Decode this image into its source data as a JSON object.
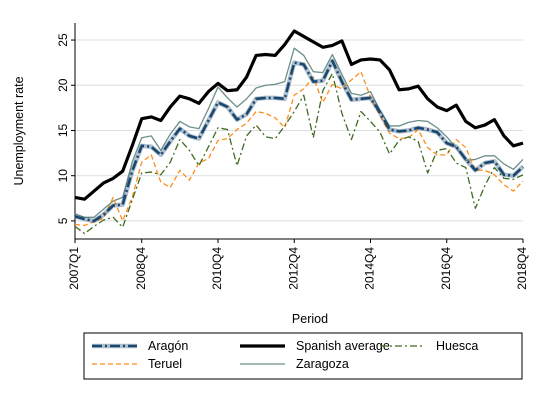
{
  "chart_data": {
    "type": "line",
    "xlabel": "Period",
    "ylabel": "Unemployment rate",
    "ylim": [
      3,
      26
    ],
    "yticks": [
      5,
      10,
      15,
      20,
      25
    ],
    "x_tick_labels": [
      "2007Q1",
      "2008Q4",
      "2010Q4",
      "2012Q4",
      "2014Q4",
      "2016Q4",
      "2018Q4"
    ],
    "x_tick_index": [
      0,
      7,
      15,
      23,
      31,
      39,
      47
    ],
    "grid": "horizontal",
    "legend_position": "bottom",
    "x": [
      "2007Q1",
      "2007Q2",
      "2007Q3",
      "2007Q4",
      "2008Q1",
      "2008Q2",
      "2008Q3",
      "2008Q4",
      "2009Q1",
      "2009Q2",
      "2009Q3",
      "2009Q4",
      "2010Q1",
      "2010Q2",
      "2010Q3",
      "2010Q4",
      "2011Q1",
      "2011Q2",
      "2011Q3",
      "2011Q4",
      "2012Q1",
      "2012Q2",
      "2012Q3",
      "2012Q4",
      "2013Q1",
      "2013Q2",
      "2013Q3",
      "2013Q4",
      "2014Q1",
      "2014Q2",
      "2014Q3",
      "2014Q4",
      "2015Q1",
      "2015Q2",
      "2015Q3",
      "2015Q4",
      "2016Q1",
      "2016Q2",
      "2016Q3",
      "2016Q4",
      "2017Q1",
      "2017Q2",
      "2017Q3",
      "2017Q4",
      "2018Q1",
      "2018Q2",
      "2018Q3",
      "2018Q4"
    ],
    "series": [
      {
        "name": "Aragón",
        "color": "#1a476f",
        "style": "thick-dashdot",
        "values": [
          5.5,
          5.2,
          5.0,
          5.7,
          6.7,
          6.8,
          10.5,
          13.3,
          13.2,
          12.3,
          13.8,
          15.2,
          14.4,
          14.1,
          16.1,
          18.1,
          17.6,
          16.2,
          16.8,
          18.5,
          18.6,
          18.6,
          18.5,
          22.5,
          22.3,
          20.4,
          20.5,
          22.7,
          20.4,
          18.4,
          18.5,
          18.6,
          17.0,
          15.1,
          14.9,
          15.0,
          15.3,
          15.1,
          14.8,
          13.6,
          13.2,
          11.8,
          10.6,
          11.4,
          11.6,
          10.1,
          10.0,
          11.0
        ]
      },
      {
        "name": "Spanish average",
        "color": "#000000",
        "style": "thick-solid",
        "values": [
          7.6,
          7.4,
          8.3,
          9.2,
          9.7,
          10.5,
          13.3,
          16.3,
          16.5,
          16.1,
          17.6,
          18.8,
          18.5,
          18.0,
          19.3,
          20.2,
          19.4,
          19.5,
          20.9,
          23.3,
          23.4,
          23.3,
          24.5,
          26.0,
          25.4,
          24.8,
          24.2,
          24.4,
          24.9,
          22.3,
          22.8,
          22.9,
          22.8,
          21.7,
          19.5,
          19.6,
          19.9,
          18.5,
          17.6,
          17.2,
          17.8,
          16.0,
          15.3,
          15.6,
          16.2,
          14.4,
          13.3,
          13.6
        ]
      },
      {
        "name": "Huesca",
        "color": "#3f6b21",
        "style": "dashdot",
        "values": [
          4.4,
          3.6,
          4.4,
          5.1,
          5.4,
          4.3,
          7.3,
          10.3,
          10.4,
          10.1,
          11.5,
          14.0,
          12.8,
          11.1,
          13.2,
          15.3,
          15.1,
          11.1,
          14.4,
          15.6,
          14.3,
          14.1,
          15.5,
          17.1,
          18.9,
          14.2,
          19.4,
          21.3,
          16.9,
          14.0,
          17.1,
          16.0,
          14.8,
          12.4,
          13.9,
          14.3,
          13.8,
          10.3,
          12.8,
          13.0,
          11.4,
          10.9,
          6.4,
          8.9,
          10.9,
          9.7,
          9.6,
          10.1
        ]
      },
      {
        "name": "Teruel",
        "color": "#ff8c1a",
        "style": "dashed",
        "values": [
          4.6,
          4.5,
          4.9,
          5.3,
          7.6,
          5.0,
          7.6,
          11.5,
          12.3,
          9.3,
          8.7,
          10.6,
          9.5,
          11.4,
          11.9,
          13.9,
          14.1,
          15.1,
          15.8,
          17.1,
          16.9,
          16.4,
          15.3,
          18.9,
          19.6,
          20.9,
          18.1,
          20.1,
          19.6,
          20.6,
          21.5,
          18.7,
          16.6,
          14.7,
          14.1,
          14.2,
          15.1,
          13.1,
          12.3,
          12.3,
          14.0,
          13.1,
          10.6,
          10.6,
          10.1,
          9.0,
          8.3,
          9.4
        ]
      },
      {
        "name": "Zaragoza",
        "color": "#6c8f8a",
        "style": "solid",
        "values": [
          5.8,
          5.4,
          5.4,
          6.3,
          7.2,
          7.6,
          11.5,
          14.2,
          14.4,
          12.8,
          14.6,
          16.0,
          15.4,
          15.2,
          17.4,
          19.8,
          18.6,
          17.6,
          18.5,
          19.7,
          20.0,
          20.1,
          20.4,
          24.1,
          23.3,
          21.5,
          21.4,
          23.4,
          21.2,
          19.1,
          18.9,
          19.3,
          17.2,
          15.5,
          15.5,
          15.9,
          16.1,
          16.0,
          15.3,
          14.3,
          13.1,
          11.7,
          11.8,
          12.2,
          12.2,
          11.3,
          10.7,
          11.8
        ]
      }
    ],
    "legend": {
      "rows": [
        [
          "Aragón",
          "Spanish average",
          "Huesca"
        ],
        [
          "Teruel",
          "Zaragoza"
        ]
      ]
    }
  }
}
